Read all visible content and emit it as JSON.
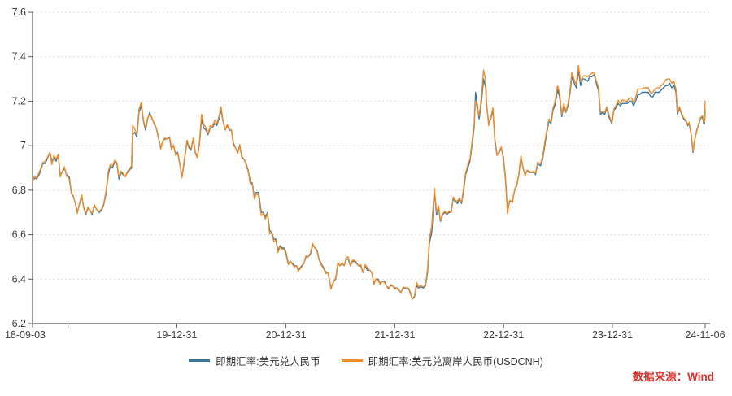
{
  "source": {
    "text": "数据来源：Wind",
    "color": "#d9302c"
  },
  "axes": {
    "y_ticks": [
      {
        "value": 7.6,
        "label": "7.6"
      },
      {
        "value": 7.4,
        "label": "7.4"
      },
      {
        "value": 7.2,
        "label": "7.2"
      },
      {
        "value": 7.0,
        "label": "7"
      },
      {
        "value": 6.8,
        "label": "6.8"
      },
      {
        "value": 6.6,
        "label": "6.6"
      },
      {
        "value": 6.4,
        "label": "6.4"
      },
      {
        "value": 6.2,
        "label": "6.2"
      }
    ],
    "x_ticks": [
      {
        "date": "2018-09-03",
        "label": "18-09-03"
      },
      {
        "date": "2018-12-31",
        "label": ""
      },
      {
        "date": "2019-12-31",
        "label": "19-12-31"
      },
      {
        "date": "2020-12-31",
        "label": "20-12-31"
      },
      {
        "date": "2021-12-31",
        "label": "21-12-31"
      },
      {
        "date": "2022-12-31",
        "label": "22-12-31"
      },
      {
        "date": "2023-12-31",
        "label": "23-12-31"
      },
      {
        "date": "2024-11-06",
        "label": "24-11-06"
      }
    ],
    "grid_color": "#d9d9d9",
    "axis_color": "#595959"
  },
  "chart_data": {
    "type": "line",
    "title": "",
    "xlabel": "",
    "ylabel": "",
    "ylim": [
      6.2,
      7.6
    ],
    "grid": "horizontal-dashed",
    "legend_position": "bottom-center",
    "x": [
      "2018-09-03",
      "2018-09-10",
      "2018-09-17",
      "2018-09-25",
      "2018-10-08",
      "2018-10-15",
      "2018-10-22",
      "2018-10-31",
      "2018-11-07",
      "2018-11-14",
      "2018-11-21",
      "2018-11-28",
      "2018-12-05",
      "2018-12-12",
      "2018-12-19",
      "2018-12-26",
      "2019-01-04",
      "2019-01-11",
      "2019-01-18",
      "2019-01-25",
      "2019-01-31",
      "2019-02-08",
      "2019-02-15",
      "2019-02-22",
      "2019-03-01",
      "2019-03-08",
      "2019-03-15",
      "2019-03-22",
      "2019-03-29",
      "2019-04-08",
      "2019-04-15",
      "2019-04-22",
      "2019-04-30",
      "2019-05-08",
      "2019-05-15",
      "2019-05-22",
      "2019-05-29",
      "2019-06-06",
      "2019-06-13",
      "2019-06-20",
      "2019-06-27",
      "2019-07-04",
      "2019-07-11",
      "2019-07-18",
      "2019-07-25",
      "2019-08-01",
      "2019-08-05",
      "2019-08-12",
      "2019-08-19",
      "2019-08-26",
      "2019-09-03",
      "2019-09-10",
      "2019-09-17",
      "2019-09-24",
      "2019-10-01",
      "2019-10-09",
      "2019-10-16",
      "2019-10-23",
      "2019-10-31",
      "2019-11-07",
      "2019-11-14",
      "2019-11-21",
      "2019-11-29",
      "2019-12-06",
      "2019-12-13",
      "2019-12-20",
      "2019-12-27",
      "2020-01-03",
      "2020-01-10",
      "2020-01-17",
      "2020-01-23",
      "2020-02-03",
      "2020-02-10",
      "2020-02-17",
      "2020-02-24",
      "2020-03-02",
      "2020-03-09",
      "2020-03-16",
      "2020-03-23",
      "2020-03-30",
      "2020-04-07",
      "2020-04-14",
      "2020-04-21",
      "2020-04-28",
      "2020-05-06",
      "2020-05-13",
      "2020-05-20",
      "2020-05-27",
      "2020-06-03",
      "2020-06-10",
      "2020-06-17",
      "2020-06-24",
      "2020-07-01",
      "2020-07-08",
      "2020-07-15",
      "2020-07-22",
      "2020-07-29",
      "2020-08-05",
      "2020-08-12",
      "2020-08-19",
      "2020-08-26",
      "2020-09-02",
      "2020-09-09",
      "2020-09-16",
      "2020-09-23",
      "2020-09-30",
      "2020-10-09",
      "2020-10-16",
      "2020-10-23",
      "2020-10-30",
      "2020-11-06",
      "2020-11-13",
      "2020-11-20",
      "2020-11-27",
      "2020-12-04",
      "2020-12-11",
      "2020-12-18",
      "2020-12-25",
      "2020-12-31",
      "2021-01-08",
      "2021-01-15",
      "2021-01-22",
      "2021-01-29",
      "2021-02-05",
      "2021-02-10",
      "2021-02-22",
      "2021-03-01",
      "2021-03-08",
      "2021-03-15",
      "2021-03-22",
      "2021-03-31",
      "2021-04-07",
      "2021-04-14",
      "2021-04-21",
      "2021-04-28",
      "2021-05-07",
      "2021-05-14",
      "2021-05-21",
      "2021-05-31",
      "2021-06-09",
      "2021-06-16",
      "2021-06-23",
      "2021-06-30",
      "2021-07-07",
      "2021-07-14",
      "2021-07-21",
      "2021-07-28",
      "2021-08-04",
      "2021-08-11",
      "2021-08-18",
      "2021-08-25",
      "2021-09-01",
      "2021-09-08",
      "2021-09-15",
      "2021-09-23",
      "2021-09-30",
      "2021-10-08",
      "2021-10-15",
      "2021-10-22",
      "2021-10-29",
      "2021-11-05",
      "2021-11-12",
      "2021-11-19",
      "2021-11-26",
      "2021-12-03",
      "2021-12-10",
      "2021-12-17",
      "2021-12-24",
      "2021-12-31",
      "2022-01-07",
      "2022-01-14",
      "2022-01-21",
      "2022-01-28",
      "2022-02-07",
      "2022-02-14",
      "2022-02-21",
      "2022-02-28",
      "2022-03-07",
      "2022-03-14",
      "2022-03-21",
      "2022-03-28",
      "2022-04-06",
      "2022-04-13",
      "2022-04-20",
      "2022-04-26",
      "2022-05-04",
      "2022-05-13",
      "2022-05-20",
      "2022-05-27",
      "2022-06-02",
      "2022-06-10",
      "2022-06-17",
      "2022-06-24",
      "2022-07-01",
      "2022-07-08",
      "2022-07-15",
      "2022-07-22",
      "2022-07-29",
      "2022-08-05",
      "2022-08-12",
      "2022-08-19",
      "2022-08-26",
      "2022-09-02",
      "2022-09-09",
      "2022-09-16",
      "2022-09-23",
      "2022-09-28",
      "2022-10-10",
      "2022-10-17",
      "2022-10-25",
      "2022-11-01",
      "2022-11-04",
      "2022-11-11",
      "2022-11-18",
      "2022-11-25",
      "2022-12-02",
      "2022-12-09",
      "2022-12-16",
      "2022-12-23",
      "2022-12-30",
      "2023-01-06",
      "2023-01-13",
      "2023-01-20",
      "2023-01-30",
      "2023-02-06",
      "2023-02-13",
      "2023-02-20",
      "2023-02-27",
      "2023-03-06",
      "2023-03-13",
      "2023-03-20",
      "2023-03-27",
      "2023-04-03",
      "2023-04-10",
      "2023-04-17",
      "2023-04-24",
      "2023-05-04",
      "2023-05-11",
      "2023-05-18",
      "2023-05-25",
      "2023-06-01",
      "2023-06-08",
      "2023-06-15",
      "2023-06-21",
      "2023-06-30",
      "2023-07-07",
      "2023-07-14",
      "2023-07-21",
      "2023-07-28",
      "2023-08-04",
      "2023-08-11",
      "2023-08-17",
      "2023-08-25",
      "2023-09-01",
      "2023-09-08",
      "2023-09-15",
      "2023-09-22",
      "2023-09-28",
      "2023-10-09",
      "2023-10-16",
      "2023-10-23",
      "2023-10-31",
      "2023-11-07",
      "2023-11-14",
      "2023-11-21",
      "2023-11-28",
      "2023-12-05",
      "2023-12-12",
      "2023-12-19",
      "2023-12-29",
      "2024-01-05",
      "2024-01-12",
      "2024-01-19",
      "2024-01-26",
      "2024-02-02",
      "2024-02-19",
      "2024-02-26",
      "2024-03-04",
      "2024-03-11",
      "2024-03-18",
      "2024-03-25",
      "2024-04-01",
      "2024-04-08",
      "2024-04-15",
      "2024-04-22",
      "2024-04-29",
      "2024-05-08",
      "2024-05-15",
      "2024-05-22",
      "2024-05-29",
      "2024-06-05",
      "2024-06-12",
      "2024-06-19",
      "2024-06-26",
      "2024-07-03",
      "2024-07-10",
      "2024-07-17",
      "2024-07-24",
      "2024-07-31",
      "2024-08-05",
      "2024-08-12",
      "2024-08-19",
      "2024-08-26",
      "2024-09-02",
      "2024-09-09",
      "2024-09-13",
      "2024-09-20",
      "2024-09-26",
      "2024-09-30",
      "2024-10-09",
      "2024-10-14",
      "2024-10-21",
      "2024-10-28",
      "2024-11-01",
      "2024-11-04",
      "2024-11-06"
    ],
    "series": [
      {
        "name": "即期汇率:美元兑人民币",
        "color": "#35789f",
        "values": [
          6.84,
          6.855,
          6.85,
          6.87,
          6.92,
          6.92,
          6.94,
          6.97,
          6.93,
          6.95,
          6.93,
          6.96,
          6.87,
          6.88,
          6.9,
          6.87,
          6.86,
          6.79,
          6.77,
          6.74,
          6.7,
          6.74,
          6.77,
          6.72,
          6.69,
          6.72,
          6.71,
          6.69,
          6.73,
          6.71,
          6.7,
          6.71,
          6.735,
          6.79,
          6.87,
          6.91,
          6.9,
          6.93,
          6.92,
          6.85,
          6.88,
          6.87,
          6.86,
          6.88,
          6.89,
          6.9,
          7.05,
          7.06,
          7.04,
          7.15,
          7.18,
          7.11,
          7.07,
          7.12,
          7.15,
          7.12,
          7.1,
          7.08,
          7.03,
          6.99,
          7.02,
          7.03,
          7.03,
          7.04,
          6.99,
          7.0,
          6.96,
          6.97,
          6.92,
          6.86,
          6.91,
          7.02,
          6.99,
          6.98,
          7.03,
          6.97,
          6.95,
          7.01,
          7.12,
          7.08,
          7.07,
          7.05,
          7.08,
          7.08,
          7.1,
          7.09,
          7.12,
          7.16,
          7.11,
          7.07,
          7.09,
          7.07,
          7.07,
          7.01,
          6.99,
          6.97,
          7.0,
          6.95,
          6.94,
          6.92,
          6.89,
          6.84,
          6.83,
          6.77,
          6.79,
          6.79,
          6.7,
          6.7,
          6.68,
          6.7,
          6.62,
          6.61,
          6.58,
          6.58,
          6.53,
          6.55,
          6.54,
          6.54,
          6.52,
          6.47,
          6.48,
          6.47,
          6.46,
          6.46,
          6.44,
          6.46,
          6.47,
          6.5,
          6.5,
          6.51,
          6.555,
          6.54,
          6.53,
          6.49,
          6.47,
          6.45,
          6.43,
          6.43,
          6.36,
          6.39,
          6.4,
          6.47,
          6.46,
          6.47,
          6.46,
          6.49,
          6.49,
          6.46,
          6.48,
          6.48,
          6.47,
          6.46,
          6.46,
          6.43,
          6.46,
          6.44,
          6.44,
          6.43,
          6.38,
          6.4,
          6.4,
          6.38,
          6.39,
          6.39,
          6.37,
          6.36,
          6.37,
          6.37,
          6.36,
          6.36,
          6.35,
          6.34,
          6.36,
          6.36,
          6.36,
          6.34,
          6.31,
          6.32,
          6.37,
          6.36,
          6.365,
          6.36,
          6.37,
          6.43,
          6.56,
          6.61,
          6.79,
          6.69,
          6.72,
          6.66,
          6.69,
          6.7,
          6.69,
          6.7,
          6.7,
          6.76,
          6.75,
          6.74,
          6.76,
          6.74,
          6.8,
          6.87,
          6.9,
          6.93,
          7.0,
          7.08,
          7.24,
          7.12,
          7.19,
          7.3,
          7.26,
          7.18,
          7.1,
          7.12,
          7.16,
          7.02,
          6.96,
          6.97,
          6.99,
          6.95,
          6.86,
          6.7,
          6.75,
          6.75,
          6.8,
          6.82,
          6.87,
          6.95,
          6.9,
          6.87,
          6.89,
          6.88,
          6.88,
          6.88,
          6.87,
          6.92,
          6.91,
          6.94,
          7.0,
          7.06,
          7.11,
          7.1,
          7.16,
          7.18,
          7.25,
          7.22,
          7.13,
          7.18,
          7.15,
          7.18,
          7.24,
          7.31,
          7.28,
          7.26,
          7.34,
          7.27,
          7.3,
          7.3,
          7.29,
          7.31,
          7.31,
          7.32,
          7.28,
          7.25,
          7.14,
          7.15,
          7.14,
          7.17,
          7.13,
          7.1,
          7.16,
          7.17,
          7.19,
          7.18,
          7.19,
          7.19,
          7.2,
          7.2,
          7.18,
          7.2,
          7.23,
          7.23,
          7.24,
          7.24,
          7.24,
          7.24,
          7.22,
          7.22,
          7.24,
          7.24,
          7.24,
          7.25,
          7.26,
          7.27,
          7.27,
          7.28,
          7.26,
          7.27,
          7.24,
          7.14,
          7.17,
          7.14,
          7.12,
          7.11,
          7.09,
          7.1,
          7.05,
          6.97,
          7.01,
          7.07,
          7.09,
          7.12,
          7.13,
          7.1,
          7.1,
          7.16
        ]
      },
      {
        "name": "即期汇率:美元兑离岸人民币(USDCNH)",
        "color": "#f28c28",
        "values": [
          6.84,
          6.865,
          6.855,
          6.88,
          6.925,
          6.93,
          6.945,
          6.97,
          6.915,
          6.955,
          6.94,
          6.96,
          6.86,
          6.885,
          6.905,
          6.865,
          6.85,
          6.785,
          6.775,
          6.735,
          6.695,
          6.745,
          6.78,
          6.715,
          6.695,
          6.725,
          6.71,
          6.695,
          6.735,
          6.71,
          6.705,
          6.715,
          6.74,
          6.8,
          6.885,
          6.915,
          6.91,
          6.935,
          6.925,
          6.86,
          6.885,
          6.875,
          6.86,
          6.885,
          6.895,
          6.91,
          7.09,
          7.075,
          7.05,
          7.165,
          7.195,
          7.115,
          7.08,
          7.125,
          7.14,
          7.125,
          7.095,
          7.08,
          7.035,
          6.985,
          7.02,
          7.035,
          7.03,
          7.035,
          6.98,
          7.005,
          6.955,
          6.965,
          6.915,
          6.855,
          6.92,
          7.025,
          6.995,
          6.985,
          7.035,
          6.965,
          6.945,
          7.02,
          7.14,
          7.095,
          7.08,
          7.055,
          7.09,
          7.085,
          7.115,
          7.1,
          7.13,
          7.175,
          7.115,
          7.07,
          7.095,
          7.075,
          7.07,
          7.0,
          6.99,
          6.965,
          7.005,
          6.945,
          6.94,
          6.915,
          6.885,
          6.83,
          6.825,
          6.76,
          6.785,
          6.775,
          6.685,
          6.695,
          6.67,
          6.695,
          6.605,
          6.605,
          6.57,
          6.575,
          6.52,
          6.545,
          6.535,
          6.535,
          6.51,
          6.465,
          6.48,
          6.465,
          6.455,
          6.46,
          6.435,
          6.455,
          6.47,
          6.505,
          6.5,
          6.515,
          6.56,
          6.54,
          6.525,
          6.485,
          6.465,
          6.445,
          6.425,
          6.43,
          6.355,
          6.39,
          6.405,
          6.475,
          6.46,
          6.475,
          6.46,
          6.495,
          6.5,
          6.46,
          6.485,
          6.485,
          6.475,
          6.46,
          6.465,
          6.43,
          6.465,
          6.45,
          6.44,
          6.43,
          6.375,
          6.4,
          6.395,
          6.375,
          6.39,
          6.385,
          6.37,
          6.355,
          6.375,
          6.37,
          6.355,
          6.36,
          6.345,
          6.34,
          6.365,
          6.36,
          6.36,
          6.335,
          6.31,
          6.325,
          6.385,
          6.365,
          6.37,
          6.365,
          6.375,
          6.445,
          6.58,
          6.64,
          6.81,
          6.7,
          6.73,
          6.665,
          6.695,
          6.705,
          6.695,
          6.705,
          6.7,
          6.77,
          6.755,
          6.75,
          6.765,
          6.745,
          6.815,
          6.88,
          6.915,
          6.94,
          7.015,
          7.1,
          7.2,
          7.135,
          7.21,
          7.34,
          7.29,
          7.19,
          7.09,
          7.125,
          7.17,
          7.01,
          6.955,
          6.975,
          6.995,
          6.94,
          6.85,
          6.695,
          6.755,
          6.745,
          6.805,
          6.825,
          6.875,
          6.955,
          6.905,
          6.865,
          6.89,
          6.885,
          6.88,
          6.885,
          6.875,
          6.925,
          6.92,
          6.95,
          7.015,
          7.07,
          7.12,
          7.11,
          7.17,
          7.195,
          7.27,
          7.235,
          7.14,
          7.19,
          7.155,
          7.19,
          7.255,
          7.33,
          7.295,
          7.275,
          7.36,
          7.29,
          7.31,
          7.315,
          7.31,
          7.32,
          7.325,
          7.33,
          7.29,
          7.265,
          7.15,
          7.155,
          7.15,
          7.175,
          7.14,
          7.105,
          7.165,
          7.18,
          7.205,
          7.19,
          7.205,
          7.2,
          7.215,
          7.215,
          7.195,
          7.22,
          7.255,
          7.255,
          7.255,
          7.26,
          7.26,
          7.26,
          7.235,
          7.24,
          7.255,
          7.26,
          7.26,
          7.27,
          7.28,
          7.295,
          7.3,
          7.3,
          7.28,
          7.29,
          7.255,
          7.15,
          7.175,
          7.145,
          7.125,
          7.115,
          7.095,
          7.105,
          7.055,
          6.975,
          7.015,
          7.065,
          7.095,
          7.125,
          7.135,
          7.11,
          7.105,
          7.2
        ]
      }
    ]
  }
}
